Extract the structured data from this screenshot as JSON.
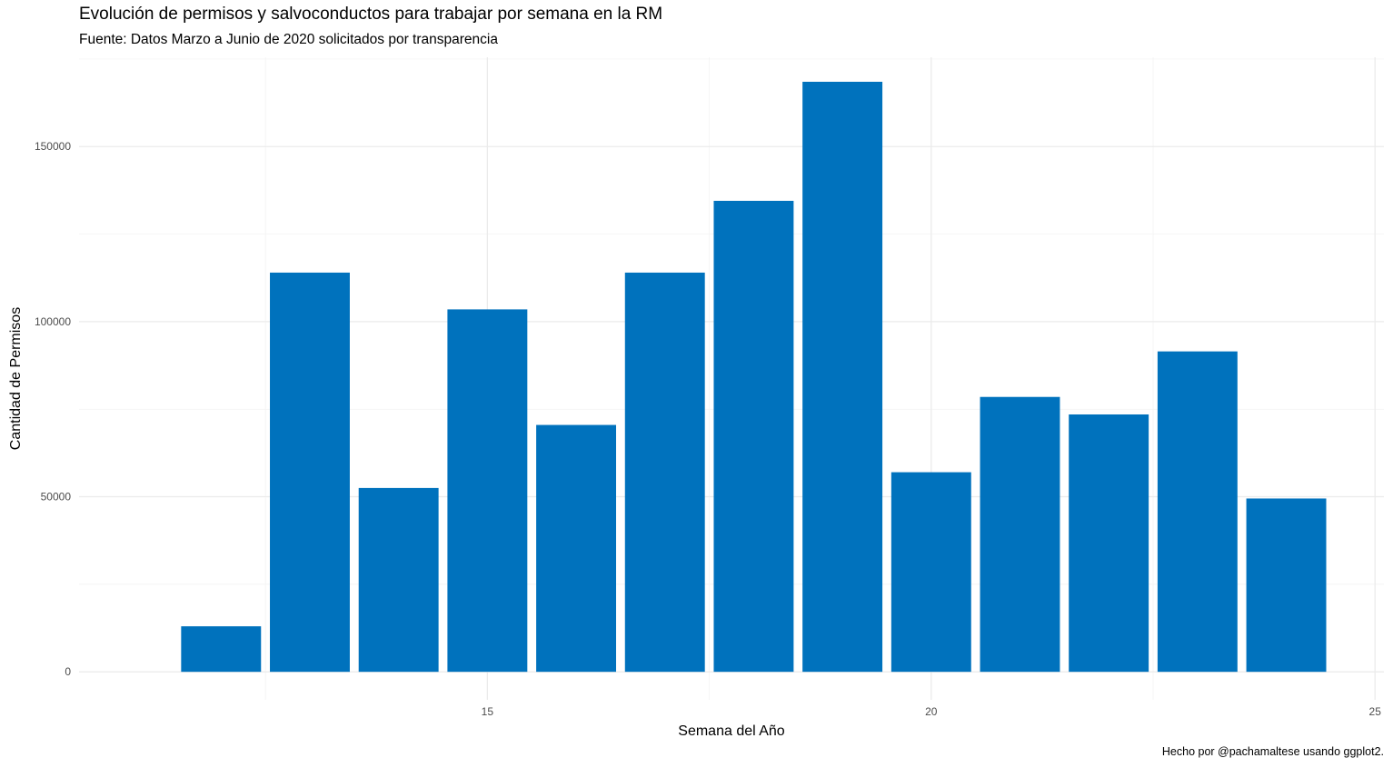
{
  "chart_data": {
    "type": "bar",
    "title": "Evolución de permisos y salvoconductos para trabajar por semana en la RM",
    "subtitle": "Fuente: Datos Marzo a Junio de 2020 solicitados por transparencia",
    "caption": "Hecho por @pachamaltese usando ggplot2.",
    "xlabel": "Semana del Año",
    "ylabel": "Cantidad de Permisos",
    "x": [
      12,
      13,
      14,
      15,
      16,
      17,
      18,
      19,
      20,
      21,
      22,
      23,
      24
    ],
    "values": [
      13000,
      114000,
      52500,
      103500,
      70500,
      114000,
      134500,
      168500,
      57000,
      78500,
      73500,
      91500,
      49500
    ],
    "xlim": [
      10.4,
      25.1
    ],
    "ylim": [
      -8000,
      175500
    ],
    "x_ticks": [
      15,
      20,
      25
    ],
    "y_ticks": [
      0,
      50000,
      100000,
      150000
    ],
    "x_tick_labels": [
      "15",
      "20",
      "25"
    ],
    "y_tick_labels": [
      "0",
      "50000",
      "100000",
      "150000"
    ],
    "bar_width": 0.9,
    "bar_color": "#0072BD",
    "grid": true,
    "legend": "none"
  }
}
